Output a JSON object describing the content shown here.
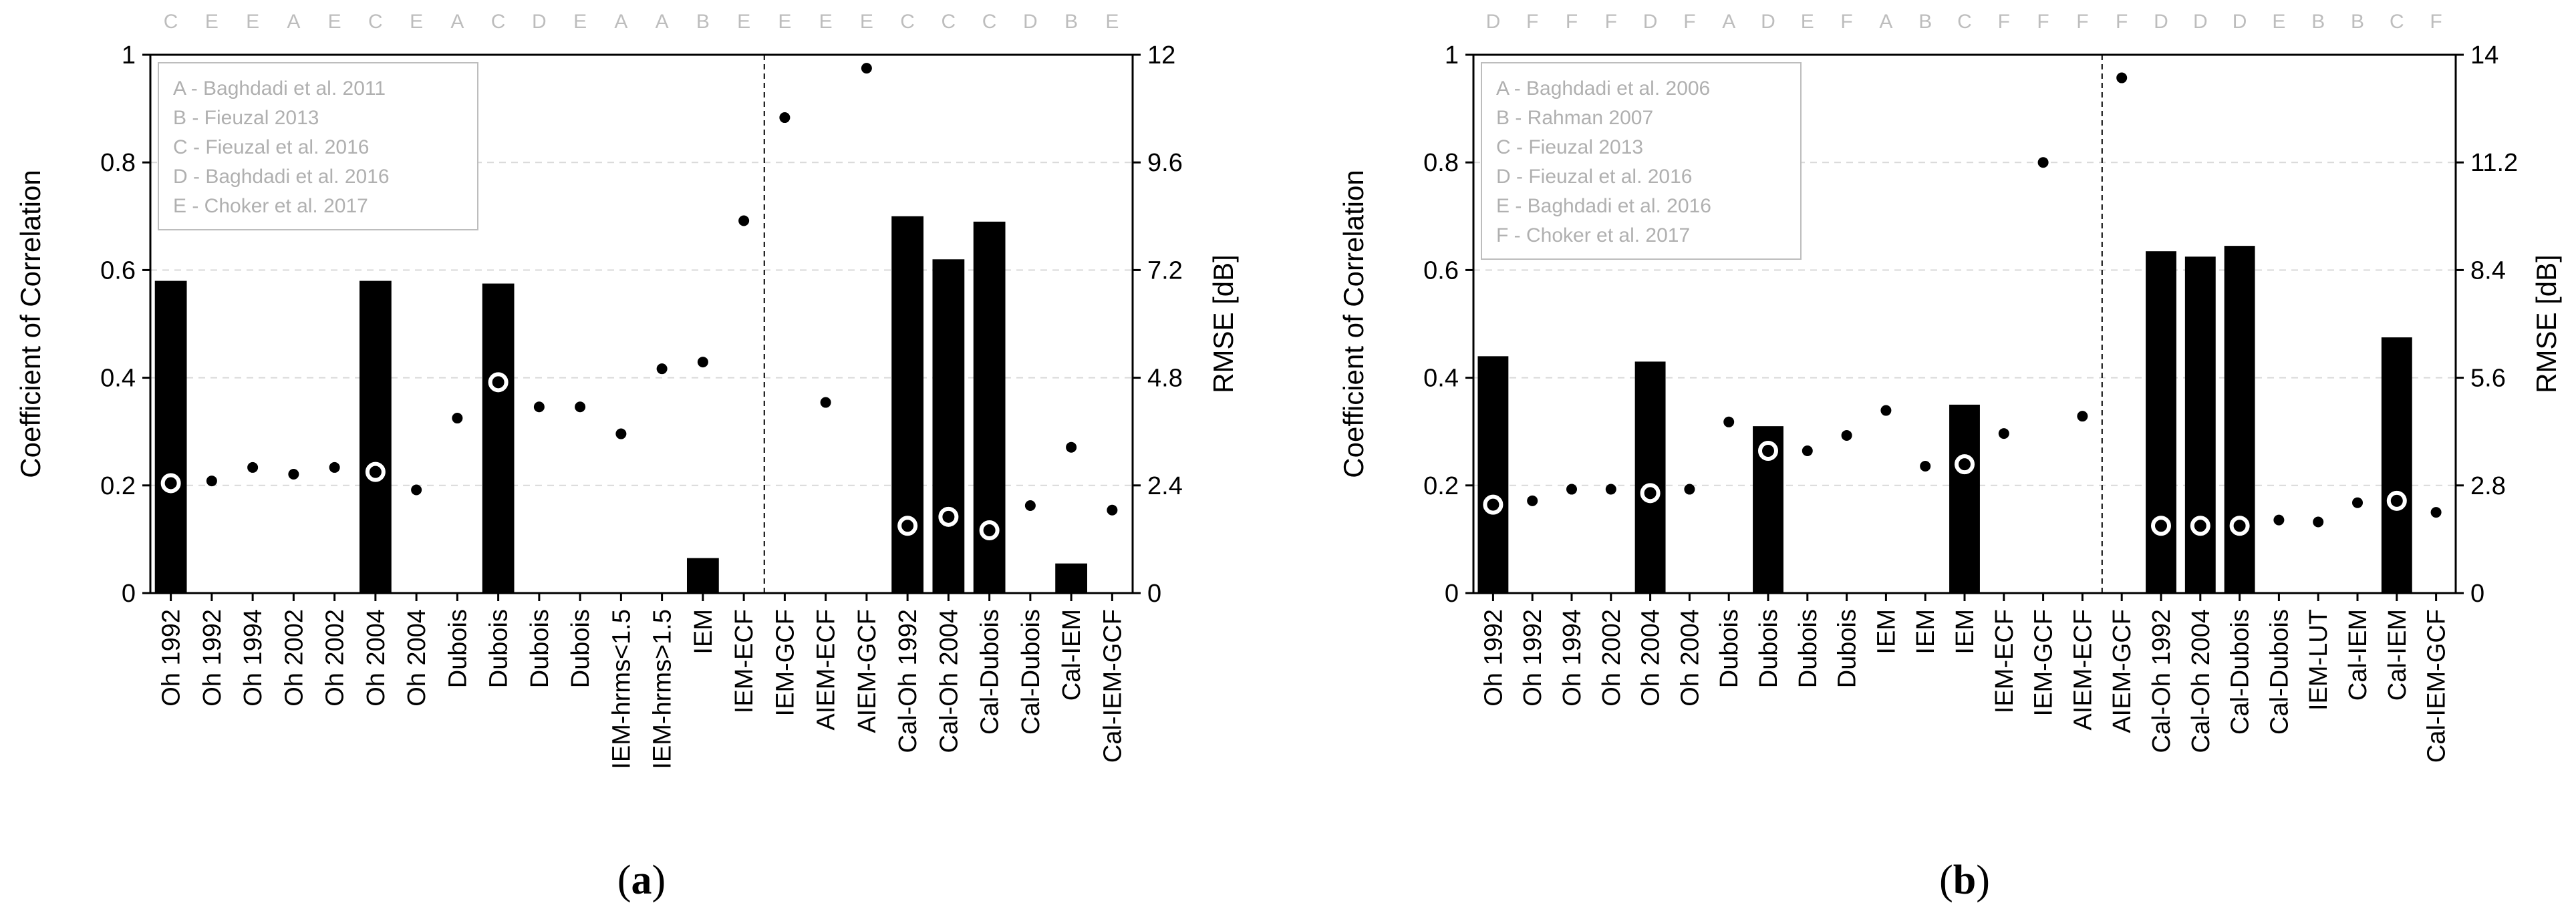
{
  "chart_data": [
    {
      "type": "bar",
      "panel_label": "a",
      "legend": [
        "A - Baghdadi et al. 2011",
        "B - Fieuzal 2013",
        "C - Fieuzal et al. 2016",
        "D - Baghdadi et al. 2016",
        "E - Choker et al. 2017"
      ],
      "ylabel": "Coefficient of Correlation",
      "ylabel_right": "RMSE [dB]",
      "ylim": [
        0,
        1
      ],
      "ylim_right": [
        0,
        12
      ],
      "yticks": [
        "0",
        "0.2",
        "0.4",
        "0.6",
        "0.8",
        "1"
      ],
      "yticks_right": [
        "0",
        "2.4",
        "4.8",
        "7.2",
        "9.6",
        "12"
      ],
      "grid": true,
      "legend_position": "top-left",
      "divider_after_index": 14,
      "categories": [
        "Oh 1992",
        "Oh 1992",
        "Oh 1994",
        "Oh 2002",
        "Oh 2002",
        "Oh 2004",
        "Oh 2004",
        "Dubois",
        "Dubois",
        "Dubois",
        "Dubois",
        "IEM-hrms<1.5",
        "IEM-hrms>1.5",
        "IEM",
        "IEM-ECF",
        "IEM-GCF",
        "AIEM-ECF",
        "AIEM-GCF",
        "Cal-Oh 1992",
        "Cal-Oh 2004",
        "Cal-Dubois",
        "Cal-Dubois",
        "Cal-IEM",
        "Cal-IEM-GCF"
      ],
      "sources": [
        "C",
        "E",
        "E",
        "A",
        "E",
        "C",
        "E",
        "A",
        "C",
        "D",
        "E",
        "A",
        "A",
        "B",
        "E",
        "E",
        "E",
        "E",
        "C",
        "C",
        "C",
        "D",
        "B",
        "E"
      ],
      "series": [
        {
          "name": "Coefficient of Correlation",
          "kind": "bar",
          "values": [
            0.58,
            null,
            null,
            null,
            null,
            0.58,
            null,
            null,
            0.575,
            null,
            null,
            null,
            null,
            0.065,
            null,
            null,
            null,
            null,
            0.7,
            0.62,
            0.69,
            null,
            0.055,
            null
          ]
        },
        {
          "name": "RMSE [dB]",
          "kind": "point",
          "values": [
            2.45,
            2.5,
            2.8,
            2.65,
            2.8,
            2.7,
            2.3,
            3.9,
            4.7,
            4.15,
            4.15,
            3.55,
            5.0,
            5.15,
            8.3,
            10.6,
            4.25,
            11.7,
            1.5,
            1.7,
            1.4,
            1.95,
            3.25,
            1.85
          ]
        }
      ],
      "rmse_hollow_indices": [
        0,
        5,
        8,
        18,
        19,
        20
      ]
    },
    {
      "type": "bar",
      "panel_label": "b",
      "legend": [
        "A - Baghdadi et al. 2006",
        "B - Rahman 2007",
        "C - Fieuzal 2013",
        "D - Fieuzal et al. 2016",
        "E - Baghdadi et al. 2016",
        "F - Choker et al. 2017"
      ],
      "ylabel": "Coefficient of Correlation",
      "ylabel_right": "RMSE [dB]",
      "ylim": [
        0,
        1
      ],
      "ylim_right": [
        0,
        14
      ],
      "yticks": [
        "0",
        "0.2",
        "0.4",
        "0.6",
        "0.8",
        "1"
      ],
      "yticks_right": [
        "0",
        "2.8",
        "5.6",
        "8.4",
        "11.2",
        "14"
      ],
      "grid": true,
      "legend_position": "top-left",
      "divider_after_index": 15,
      "categories": [
        "Oh 1992",
        "Oh 1992",
        "Oh 1994",
        "Oh 2002",
        "Oh 2004",
        "Oh 2004",
        "Dubois",
        "Dubois",
        "Dubois",
        "Dubois",
        "IEM",
        "IEM",
        "IEM",
        "IEM-ECF",
        "IEM-GCF",
        "AIEM-ECF",
        "AIEM-GCF",
        "Cal-Oh 1992",
        "Cal-Oh 2004",
        "Cal-Dubois",
        "Cal-Dubois",
        "IEM-LUT",
        "Cal-IEM",
        "Cal-IEM",
        "Cal-IEM-GCF"
      ],
      "sources": [
        "D",
        "F",
        "F",
        "F",
        "D",
        "F",
        "A",
        "D",
        "E",
        "F",
        "A",
        "B",
        "C",
        "F",
        "F",
        "F",
        "F",
        "D",
        "D",
        "D",
        "E",
        "B",
        "B",
        "C",
        "F"
      ],
      "series": [
        {
          "name": "Coefficient of Correlation",
          "kind": "bar",
          "values": [
            0.44,
            null,
            null,
            null,
            0.43,
            null,
            null,
            0.31,
            null,
            null,
            null,
            null,
            0.35,
            null,
            null,
            null,
            null,
            0.635,
            0.625,
            0.645,
            null,
            null,
            null,
            0.475,
            null
          ]
        },
        {
          "name": "RMSE [dB]",
          "kind": "point",
          "values": [
            2.3,
            2.4,
            2.7,
            2.7,
            2.6,
            2.7,
            4.45,
            3.7,
            3.7,
            4.1,
            4.75,
            3.3,
            3.35,
            4.15,
            11.2,
            4.6,
            13.4,
            1.75,
            1.75,
            1.75,
            1.9,
            1.85,
            2.35,
            2.4,
            2.1
          ]
        }
      ],
      "rmse_hollow_indices": [
        0,
        4,
        7,
        12,
        17,
        18,
        19,
        23
      ]
    }
  ]
}
